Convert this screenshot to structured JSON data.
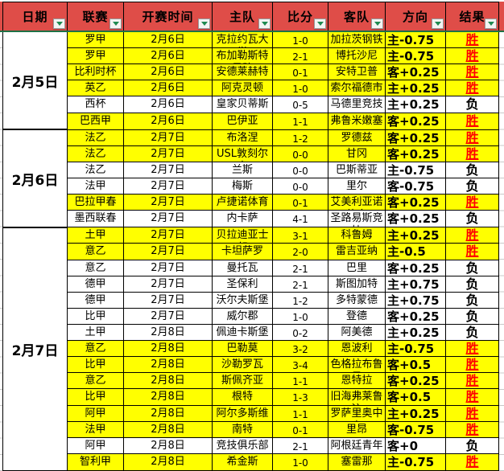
{
  "colors": {
    "header_bg": "#DF4D48",
    "header_underline": "#1E7145",
    "filter_arrow": "#1E8A50",
    "win_row_bg": "#FFFF00",
    "loss_row_bg": "#FFFFFF",
    "win_text": "#FF0000",
    "loss_text": "#000000"
  },
  "table": {
    "columns": [
      {
        "label": "日期"
      },
      {
        "label": "联赛"
      },
      {
        "label": "开赛时间"
      },
      {
        "label": "主队"
      },
      {
        "label": "比分"
      },
      {
        "label": "客队"
      },
      {
        "label": "方向"
      },
      {
        "label": "结果"
      }
    ],
    "filter_icon": "triangle-down",
    "groups": [
      {
        "date": "2月5日",
        "rows": [
          {
            "league": "罗甲",
            "time": "2月6日",
            "home": "克拉约瓦大学",
            "score": "1-0",
            "away": "加拉茨钢铁",
            "direction": "主-0.75",
            "result": "胜",
            "win": true
          },
          {
            "league": "罗甲",
            "time": "2月6日",
            "home": "布加勒斯特星队",
            "score": "2-1",
            "away": "博托沙尼",
            "direction": "主-0.75",
            "result": "胜",
            "win": true
          },
          {
            "league": "比利时杯",
            "time": "2月6日",
            "home": "安德莱赫特",
            "score": "0-1",
            "away": "安特卫普",
            "direction": "客+0.25",
            "result": "胜",
            "win": true
          },
          {
            "league": "英乙",
            "time": "2月6日",
            "home": "阿克灵顿",
            "score": "1-0",
            "away": "索尔福德市",
            "direction": "主+0.25",
            "result": "胜",
            "win": true
          },
          {
            "league": "西杯",
            "time": "2月6日",
            "home": "皇家贝蒂斯",
            "score": "0-5",
            "away": "马德里竞技",
            "direction": "主+0.25",
            "result": "负",
            "win": false
          },
          {
            "league": "巴西甲",
            "time": "2月6日",
            "home": "巴伊亚",
            "score": "1-1",
            "away": "弗鲁米嫩塞",
            "direction": "客+0.25",
            "result": "胜",
            "win": true
          }
        ]
      },
      {
        "date": "2月6日",
        "rows": [
          {
            "league": "法乙",
            "time": "2月7日",
            "home": "布洛涅",
            "score": "1-2",
            "away": "罗德兹",
            "direction": "客+0.25",
            "result": "胜",
            "win": true
          },
          {
            "league": "法乙",
            "time": "2月7日",
            "home": "USL敦刻尔克",
            "score": "0-0",
            "away": "甘冈",
            "direction": "客+0.25",
            "result": "胜",
            "win": true
          },
          {
            "league": "法乙",
            "time": "2月7日",
            "home": "兰斯",
            "score": "0-0",
            "away": "巴斯蒂亚",
            "direction": "主-0.75",
            "result": "负",
            "win": false
          },
          {
            "league": "法甲",
            "time": "2月7日",
            "home": "梅斯",
            "score": "0-0",
            "away": "里尔",
            "direction": "客-0.75",
            "result": "负",
            "win": false
          },
          {
            "league": "巴拉甲春",
            "time": "2月7日",
            "home": "卢捷诺体育",
            "score": "0-1",
            "away": "艾美利亚诺体育",
            "direction": "客+0.25",
            "result": "胜",
            "win": true
          },
          {
            "league": "墨西联春",
            "time": "2月7日",
            "home": "内卡萨",
            "score": "4-1",
            "away": "圣路易斯竞技",
            "direction": "客+0.25",
            "result": "负",
            "win": false
          }
        ]
      },
      {
        "date": "2月7日",
        "rows": [
          {
            "league": "土甲",
            "time": "2月7日",
            "home": "贝拉迪亚士邦",
            "score": "3-1",
            "away": "科鲁姆",
            "direction": "主+0.25",
            "result": "胜",
            "win": true
          },
          {
            "league": "意乙",
            "time": "2月7日",
            "home": "卡坦萨罗",
            "score": "2-0",
            "away": "雷吉亚纳",
            "direction": "主-0.5",
            "result": "胜",
            "win": true
          },
          {
            "league": "意乙",
            "time": "2月7日",
            "home": "曼托瓦",
            "score": "2-1",
            "away": "巴里",
            "direction": "客+0.25",
            "result": "负",
            "win": false
          },
          {
            "league": "德甲",
            "time": "2月7日",
            "home": "圣保利",
            "score": "2-1",
            "away": "斯图加特",
            "direction": "主+0.75",
            "result": "负",
            "win": false
          },
          {
            "league": "德甲",
            "time": "2月7日",
            "home": "沃尔夫斯堡",
            "score": "1-2",
            "away": "多特蒙德",
            "direction": "主+0.75",
            "result": "负",
            "win": false
          },
          {
            "league": "比甲",
            "time": "2月7日",
            "home": "威尔郡",
            "score": "1-0",
            "away": "登德",
            "direction": "客+0.25",
            "result": "负",
            "win": false
          },
          {
            "league": "土甲",
            "time": "2月8日",
            "home": "佩迪卡斯堡",
            "score": "0-2",
            "away": "阿美德",
            "direction": "主+0.25",
            "result": "负",
            "win": false
          },
          {
            "league": "意乙",
            "time": "2月8日",
            "home": "巴勒莫",
            "score": "3-2",
            "away": "恩波利",
            "direction": "主-0.75",
            "result": "胜",
            "win": true
          },
          {
            "league": "比甲",
            "time": "2月8日",
            "home": "沙勒罗瓦",
            "score": "3-4",
            "away": "色格拉布鲁日",
            "direction": "客+0.5",
            "result": "胜",
            "win": true
          },
          {
            "league": "意乙",
            "time": "2月8日",
            "home": "斯佩齐亚",
            "score": "1-1",
            "away": "恩特拉",
            "direction": "客+0.25",
            "result": "胜",
            "win": true
          },
          {
            "league": "比甲",
            "time": "2月8日",
            "home": "根特",
            "score": "1-3",
            "away": "旧海弗莱鲁汶",
            "direction": "客+0.5",
            "result": "胜",
            "win": true
          },
          {
            "league": "阿甲",
            "time": "2月8日",
            "home": "阿尔多斯维",
            "score": "1-1",
            "away": "罗萨里奥中央",
            "direction": "主+0.25",
            "result": "胜",
            "win": true
          },
          {
            "league": "法甲",
            "time": "2月8日",
            "home": "南特",
            "score": "0-1",
            "away": "里昂",
            "direction": "客-0.75",
            "result": "胜",
            "win": true
          },
          {
            "league": "阿甲",
            "time": "2月8日",
            "home": "竞技俱乐部",
            "score": "2-1",
            "away": "阿根廷青年",
            "direction": "客+0",
            "result": "负",
            "win": false
          },
          {
            "league": "智利甲",
            "time": "2月8日",
            "home": "希金斯",
            "score": "1-0",
            "away": "塞雷那",
            "direction": "主-0.75",
            "result": "胜",
            "win": true
          }
        ]
      }
    ]
  }
}
